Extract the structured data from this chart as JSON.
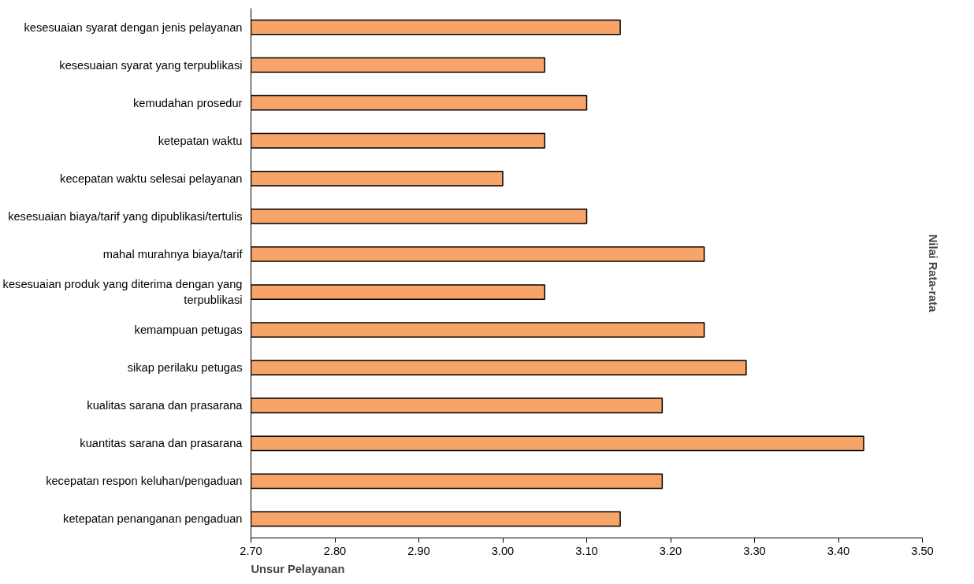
{
  "chart_data": {
    "type": "bar",
    "orientation": "horizontal",
    "xlabel": "Unsur Pelayanan",
    "ylabel": "Nilai Rata-rata",
    "categories": [
      "kesesuaian syarat dengan jenis pelayanan",
      "kesesuaian syarat yang terpublikasi",
      "kemudahan prosedur",
      "ketepatan waktu",
      "kecepatan waktu selesai pelayanan",
      "kesesuaian biaya/tarif yang dipublikasi/tertulis",
      "mahal murahnya biaya/tarif",
      "kesesuaian produk yang diterima dengan yang terpublikasi",
      "kemampuan petugas",
      "sikap perilaku petugas",
      "kualitas sarana dan prasarana",
      "kuantitas sarana dan prasarana",
      "kecepatan respon keluhan/pengaduan",
      "ketepatan penanganan pengaduan"
    ],
    "values": [
      3.14,
      3.05,
      3.1,
      3.05,
      3.0,
      3.1,
      3.24,
      3.05,
      3.24,
      3.29,
      3.19,
      3.43,
      3.19,
      3.14
    ],
    "color": "#f7a468",
    "xlim": [
      2.7,
      3.5
    ],
    "xticks": [
      {
        "value": 2.7,
        "label": "2.70"
      },
      {
        "value": 2.8,
        "label": "2.80"
      },
      {
        "value": 2.9,
        "label": "2.90"
      },
      {
        "value": 3.0,
        "label": "3.00"
      },
      {
        "value": 3.1,
        "label": "3.10"
      },
      {
        "value": 3.2,
        "label": "3.20"
      },
      {
        "value": 3.3,
        "label": "3.30"
      },
      {
        "value": 3.4,
        "label": "3.40"
      },
      {
        "value": 3.5,
        "label": "3.50"
      }
    ],
    "grid": false
  }
}
